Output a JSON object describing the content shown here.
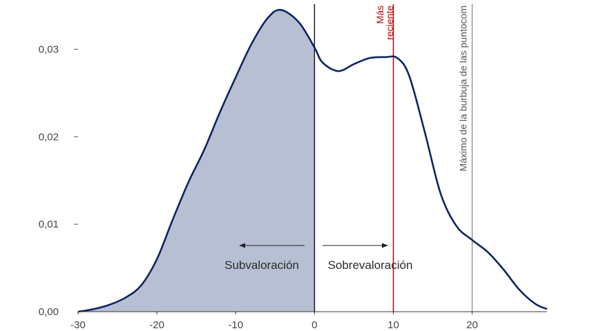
{
  "chart_data": {
    "type": "area",
    "x": [
      -30,
      -28,
      -26,
      -24,
      -22,
      -20,
      -18,
      -16,
      -14,
      -12,
      -10,
      -8,
      -6,
      -4.3,
      -2,
      0,
      1,
      3,
      5,
      7,
      9,
      10.5,
      12,
      14,
      16,
      18,
      20,
      22,
      24,
      26,
      28,
      29.5
    ],
    "y": [
      0.0,
      0.0003,
      0.0008,
      0.0016,
      0.003,
      0.006,
      0.0105,
      0.0148,
      0.0185,
      0.0228,
      0.0268,
      0.0306,
      0.0335,
      0.0345,
      0.0331,
      0.0302,
      0.0285,
      0.0275,
      0.0283,
      0.029,
      0.0291,
      0.029,
      0.027,
      0.0205,
      0.0135,
      0.0098,
      0.0082,
      0.0068,
      0.0048,
      0.0025,
      0.0009,
      0.0003
    ],
    "shaded_range": [
      -30,
      0
    ],
    "xlim": [
      -30,
      29.5
    ],
    "ylim": [
      0,
      0.035
    ],
    "xticks": [
      "-30",
      "-20",
      "-10",
      "0",
      "10",
      "20"
    ],
    "xtick_values": [
      -30,
      -20,
      -10,
      0,
      10,
      20
    ],
    "yticks": [
      "0,00",
      "0,01",
      "0,02",
      "0,03"
    ],
    "ytick_values": [
      0,
      0.01,
      0.02,
      0.03
    ],
    "vlines": [
      {
        "x": 0,
        "color": "#1a1a1a",
        "label": ""
      },
      {
        "x": 10,
        "color": "#c00000",
        "label_lines": [
          "Más",
          "reciente"
        ]
      },
      {
        "x": 20,
        "color": "#8a8a8a",
        "label_lines": [
          "Máximo de la burbuja de las puntocom"
        ]
      }
    ],
    "annotations": {
      "left": "Subvaloración",
      "right": "Sobrevaloración"
    },
    "colors": {
      "curve": "#0d2462",
      "fill": "#b7bfd3",
      "axis": "#333333",
      "recent": "#c00000",
      "bubble": "#8a8a8a"
    },
    "grid": false,
    "legend": "none"
  }
}
